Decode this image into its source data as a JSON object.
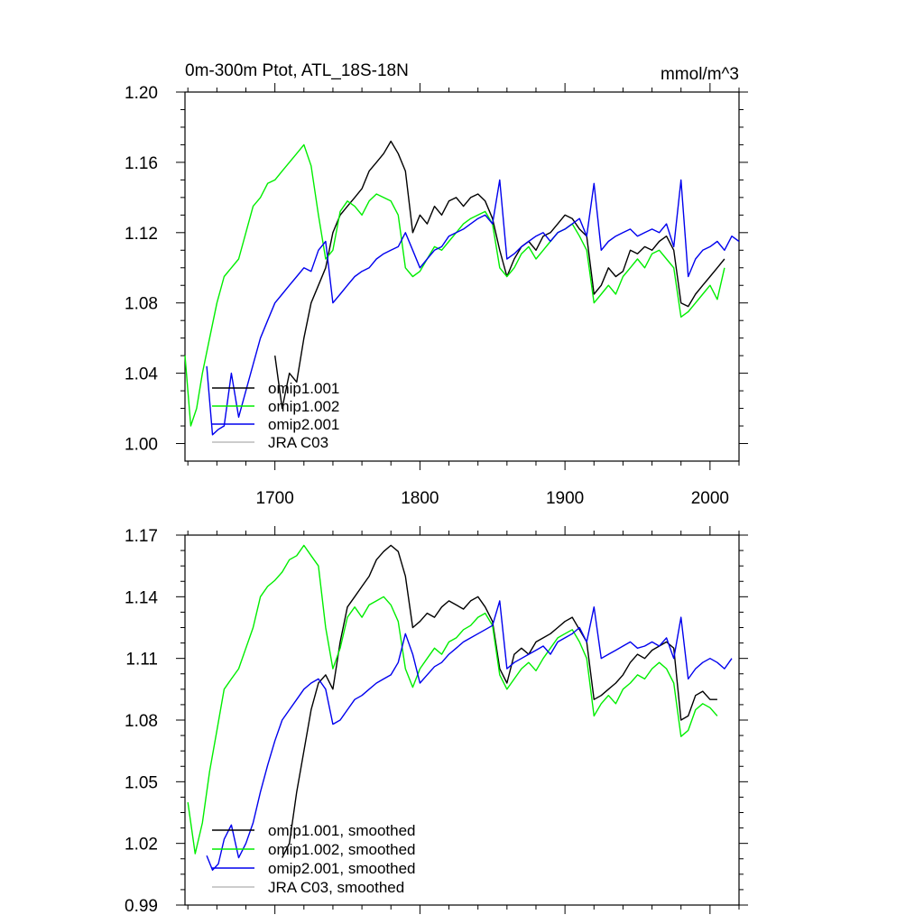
{
  "chart_data": [
    {
      "type": "line",
      "title": "0m-300m Ptot, ATL_18S-18N",
      "units": "mmol/m^3",
      "xlabel": "",
      "ylabel": "",
      "xlim": [
        1638,
        2020
      ],
      "ylim": [
        0.99,
        1.2
      ],
      "yticks": [
        1.0,
        1.04,
        1.08,
        1.12,
        1.16,
        1.2
      ],
      "ytick_labels": [
        "1.00",
        "1.04",
        "1.08",
        "1.12",
        "1.16",
        "1.20"
      ],
      "xticks": [
        1700,
        1800,
        1900,
        2000
      ],
      "xtick_labels": [
        "1700",
        "1800",
        "1900",
        "2000"
      ],
      "legend_position": "bottom-left",
      "legend": [
        "omip1.001",
        "omip1.002",
        "omip2.001",
        "JRA C03"
      ],
      "series": [
        {
          "name": "omip1.001",
          "color": "#000000",
          "x": [
            1700,
            1705,
            1710,
            1715,
            1720,
            1725,
            1730,
            1735,
            1740,
            1745,
            1750,
            1755,
            1760,
            1765,
            1770,
            1775,
            1780,
            1785,
            1790,
            1795,
            1800,
            1805,
            1810,
            1815,
            1820,
            1825,
            1830,
            1835,
            1840,
            1845,
            1850,
            1855,
            1860,
            1865,
            1870,
            1875,
            1880,
            1885,
            1890,
            1895,
            1900,
            1905,
            1910,
            1915,
            1920,
            1925,
            1930,
            1935,
            1940,
            1945,
            1950,
            1955,
            1960,
            1965,
            1970,
            1975,
            1980,
            1985,
            1990,
            1995,
            2000,
            2005,
            2010
          ],
          "y": [
            1.05,
            1.02,
            1.04,
            1.035,
            1.06,
            1.08,
            1.09,
            1.1,
            1.12,
            1.13,
            1.135,
            1.14,
            1.145,
            1.155,
            1.16,
            1.165,
            1.172,
            1.165,
            1.155,
            1.12,
            1.13,
            1.125,
            1.135,
            1.13,
            1.138,
            1.14,
            1.135,
            1.14,
            1.142,
            1.138,
            1.128,
            1.11,
            1.095,
            1.105,
            1.112,
            1.115,
            1.11,
            1.118,
            1.12,
            1.125,
            1.13,
            1.128,
            1.122,
            1.118,
            1.085,
            1.09,
            1.1,
            1.095,
            1.098,
            1.11,
            1.108,
            1.112,
            1.11,
            1.115,
            1.118,
            1.11,
            1.08,
            1.078,
            1.085,
            1.09,
            1.095,
            1.1,
            1.105
          ]
        },
        {
          "name": "omip1.002",
          "color": "#00ee00",
          "x": [
            1638,
            1642,
            1646,
            1650,
            1655,
            1660,
            1665,
            1670,
            1675,
            1680,
            1685,
            1690,
            1695,
            1700,
            1705,
            1710,
            1715,
            1720,
            1725,
            1730,
            1735,
            1740,
            1745,
            1750,
            1755,
            1760,
            1765,
            1770,
            1775,
            1780,
            1785,
            1790,
            1795,
            1800,
            1805,
            1810,
            1815,
            1820,
            1825,
            1830,
            1835,
            1840,
            1845,
            1850,
            1855,
            1860,
            1865,
            1870,
            1875,
            1880,
            1885,
            1890,
            1895,
            1900,
            1905,
            1910,
            1915,
            1920,
            1925,
            1930,
            1935,
            1940,
            1945,
            1950,
            1955,
            1960,
            1965,
            1970,
            1975,
            1980,
            1985,
            1990,
            1995,
            2000,
            2005,
            2010
          ],
          "y": [
            1.05,
            1.01,
            1.02,
            1.04,
            1.06,
            1.08,
            1.095,
            1.1,
            1.105,
            1.12,
            1.135,
            1.14,
            1.148,
            1.15,
            1.155,
            1.16,
            1.165,
            1.17,
            1.158,
            1.13,
            1.105,
            1.11,
            1.132,
            1.138,
            1.135,
            1.13,
            1.138,
            1.142,
            1.14,
            1.138,
            1.13,
            1.1,
            1.095,
            1.098,
            1.105,
            1.112,
            1.11,
            1.115,
            1.12,
            1.125,
            1.128,
            1.13,
            1.132,
            1.125,
            1.1,
            1.095,
            1.1,
            1.108,
            1.112,
            1.105,
            1.11,
            1.115,
            1.12,
            1.122,
            1.125,
            1.118,
            1.11,
            1.08,
            1.085,
            1.09,
            1.085,
            1.095,
            1.1,
            1.105,
            1.1,
            1.108,
            1.11,
            1.105,
            1.1,
            1.072,
            1.075,
            1.08,
            1.085,
            1.09,
            1.082,
            1.1
          ]
        },
        {
          "name": "omip2.001",
          "color": "#0000ee",
          "x": [
            1653,
            1657,
            1661,
            1665,
            1670,
            1675,
            1680,
            1685,
            1690,
            1695,
            1700,
            1705,
            1710,
            1715,
            1720,
            1725,
            1730,
            1735,
            1740,
            1745,
            1750,
            1755,
            1760,
            1765,
            1770,
            1775,
            1780,
            1785,
            1790,
            1795,
            1800,
            1805,
            1810,
            1815,
            1820,
            1825,
            1830,
            1835,
            1840,
            1845,
            1850,
            1855,
            1860,
            1865,
            1870,
            1875,
            1880,
            1885,
            1890,
            1895,
            1900,
            1905,
            1910,
            1915,
            1920,
            1925,
            1930,
            1935,
            1940,
            1945,
            1950,
            1955,
            1960,
            1965,
            1970,
            1975,
            1980,
            1985,
            1990,
            1995,
            2000,
            2005,
            2010,
            2015,
            2020
          ],
          "y": [
            1.044,
            1.005,
            1.008,
            1.01,
            1.04,
            1.015,
            1.03,
            1.045,
            1.06,
            1.07,
            1.08,
            1.085,
            1.09,
            1.095,
            1.1,
            1.098,
            1.11,
            1.115,
            1.08,
            1.085,
            1.09,
            1.095,
            1.098,
            1.1,
            1.105,
            1.108,
            1.11,
            1.112,
            1.12,
            1.11,
            1.1,
            1.105,
            1.11,
            1.112,
            1.118,
            1.12,
            1.122,
            1.125,
            1.128,
            1.13,
            1.125,
            1.15,
            1.105,
            1.108,
            1.112,
            1.115,
            1.118,
            1.12,
            1.115,
            1.12,
            1.122,
            1.125,
            1.128,
            1.118,
            1.148,
            1.11,
            1.115,
            1.118,
            1.12,
            1.122,
            1.118,
            1.12,
            1.122,
            1.12,
            1.125,
            1.112,
            1.15,
            1.095,
            1.105,
            1.11,
            1.112,
            1.115,
            1.11,
            1.118,
            1.115
          ]
        },
        {
          "name": "JRA C03",
          "color": "#bbbbbb",
          "x": [],
          "y": []
        }
      ]
    },
    {
      "type": "line",
      "title": "",
      "xlabel": "",
      "ylabel": "",
      "xlim": [
        1638,
        2020
      ],
      "ylim": [
        0.99,
        1.17
      ],
      "yticks": [
        0.99,
        1.02,
        1.05,
        1.08,
        1.11,
        1.14,
        1.17
      ],
      "ytick_labels": [
        "0.99",
        "1.02",
        "1.05",
        "1.08",
        "1.11",
        "1.14",
        "1.17"
      ],
      "xticks": [
        1700,
        1800,
        1900,
        2000
      ],
      "xtick_labels": [],
      "legend_position": "bottom-left",
      "legend": [
        "omip1.001, smoothed",
        "omip1.002, smoothed",
        "omip2.001, smoothed",
        "JRA C03, smoothed"
      ],
      "series": [
        {
          "name": "omip1.001, smoothed",
          "color": "#000000",
          "x": [
            1705,
            1710,
            1715,
            1720,
            1725,
            1730,
            1735,
            1740,
            1745,
            1750,
            1755,
            1760,
            1765,
            1770,
            1775,
            1780,
            1785,
            1790,
            1795,
            1800,
            1805,
            1810,
            1815,
            1820,
            1825,
            1830,
            1835,
            1840,
            1845,
            1850,
            1855,
            1860,
            1865,
            1870,
            1875,
            1880,
            1885,
            1890,
            1895,
            1900,
            1905,
            1910,
            1915,
            1920,
            1925,
            1930,
            1935,
            1940,
            1945,
            1950,
            1955,
            1960,
            1965,
            1970,
            1975,
            1980,
            1985,
            1990,
            1995,
            2000,
            2005
          ],
          "y": [
            1.013,
            1.02,
            1.045,
            1.065,
            1.085,
            1.098,
            1.102,
            1.095,
            1.118,
            1.135,
            1.14,
            1.145,
            1.15,
            1.158,
            1.162,
            1.165,
            1.162,
            1.15,
            1.125,
            1.128,
            1.132,
            1.13,
            1.135,
            1.138,
            1.136,
            1.134,
            1.138,
            1.14,
            1.135,
            1.128,
            1.105,
            1.098,
            1.112,
            1.115,
            1.112,
            1.118,
            1.12,
            1.122,
            1.125,
            1.128,
            1.13,
            1.124,
            1.118,
            1.09,
            1.092,
            1.095,
            1.098,
            1.102,
            1.108,
            1.112,
            1.11,
            1.114,
            1.116,
            1.118,
            1.115,
            1.08,
            1.082,
            1.092,
            1.094,
            1.09,
            1.09
          ]
        },
        {
          "name": "omip1.002, smoothed",
          "color": "#00ee00",
          "x": [
            1640,
            1645,
            1650,
            1655,
            1660,
            1665,
            1670,
            1675,
            1680,
            1685,
            1690,
            1695,
            1700,
            1705,
            1710,
            1715,
            1720,
            1725,
            1730,
            1735,
            1740,
            1745,
            1750,
            1755,
            1760,
            1765,
            1770,
            1775,
            1780,
            1785,
            1790,
            1795,
            1800,
            1805,
            1810,
            1815,
            1820,
            1825,
            1830,
            1835,
            1840,
            1845,
            1850,
            1855,
            1860,
            1865,
            1870,
            1875,
            1880,
            1885,
            1890,
            1895,
            1900,
            1905,
            1910,
            1915,
            1920,
            1925,
            1930,
            1935,
            1940,
            1945,
            1950,
            1955,
            1960,
            1965,
            1970,
            1975,
            1980,
            1985,
            1990,
            1995,
            2000,
            2005
          ],
          "y": [
            1.04,
            1.015,
            1.03,
            1.055,
            1.075,
            1.095,
            1.1,
            1.105,
            1.115,
            1.125,
            1.14,
            1.145,
            1.148,
            1.152,
            1.158,
            1.16,
            1.165,
            1.16,
            1.155,
            1.125,
            1.105,
            1.115,
            1.13,
            1.135,
            1.13,
            1.136,
            1.138,
            1.14,
            1.136,
            1.128,
            1.105,
            1.096,
            1.105,
            1.11,
            1.115,
            1.112,
            1.118,
            1.12,
            1.124,
            1.126,
            1.13,
            1.132,
            1.126,
            1.102,
            1.095,
            1.1,
            1.105,
            1.108,
            1.104,
            1.11,
            1.115,
            1.12,
            1.122,
            1.124,
            1.118,
            1.11,
            1.082,
            1.088,
            1.092,
            1.088,
            1.095,
            1.098,
            1.102,
            1.1,
            1.105,
            1.108,
            1.105,
            1.098,
            1.072,
            1.075,
            1.085,
            1.088,
            1.086,
            1.082
          ]
        },
        {
          "name": "omip2.001, smoothed",
          "color": "#0000ee",
          "x": [
            1653,
            1657,
            1661,
            1665,
            1670,
            1675,
            1680,
            1685,
            1690,
            1695,
            1700,
            1705,
            1710,
            1715,
            1720,
            1725,
            1730,
            1735,
            1740,
            1745,
            1750,
            1755,
            1760,
            1765,
            1770,
            1775,
            1780,
            1785,
            1790,
            1795,
            1800,
            1805,
            1810,
            1815,
            1820,
            1825,
            1830,
            1835,
            1840,
            1845,
            1850,
            1855,
            1860,
            1865,
            1870,
            1875,
            1880,
            1885,
            1890,
            1895,
            1900,
            1905,
            1910,
            1915,
            1920,
            1925,
            1930,
            1935,
            1940,
            1945,
            1950,
            1955,
            1960,
            1965,
            1970,
            1975,
            1980,
            1985,
            1990,
            1995,
            2000,
            2005,
            2010,
            2015
          ],
          "y": [
            1.014,
            1.007,
            1.01,
            1.022,
            1.029,
            1.013,
            1.02,
            1.03,
            1.045,
            1.058,
            1.07,
            1.08,
            1.085,
            1.09,
            1.095,
            1.098,
            1.1,
            1.095,
            1.078,
            1.08,
            1.085,
            1.09,
            1.092,
            1.095,
            1.098,
            1.1,
            1.102,
            1.108,
            1.122,
            1.112,
            1.098,
            1.102,
            1.106,
            1.108,
            1.112,
            1.115,
            1.118,
            1.12,
            1.122,
            1.124,
            1.126,
            1.138,
            1.105,
            1.108,
            1.11,
            1.112,
            1.114,
            1.116,
            1.112,
            1.118,
            1.12,
            1.122,
            1.125,
            1.118,
            1.135,
            1.11,
            1.112,
            1.114,
            1.116,
            1.118,
            1.115,
            1.116,
            1.118,
            1.116,
            1.12,
            1.11,
            1.13,
            1.1,
            1.105,
            1.108,
            1.11,
            1.108,
            1.105,
            1.11
          ]
        },
        {
          "name": "JRA C03, smoothed",
          "color": "#bbbbbb",
          "x": [],
          "y": []
        }
      ]
    }
  ]
}
